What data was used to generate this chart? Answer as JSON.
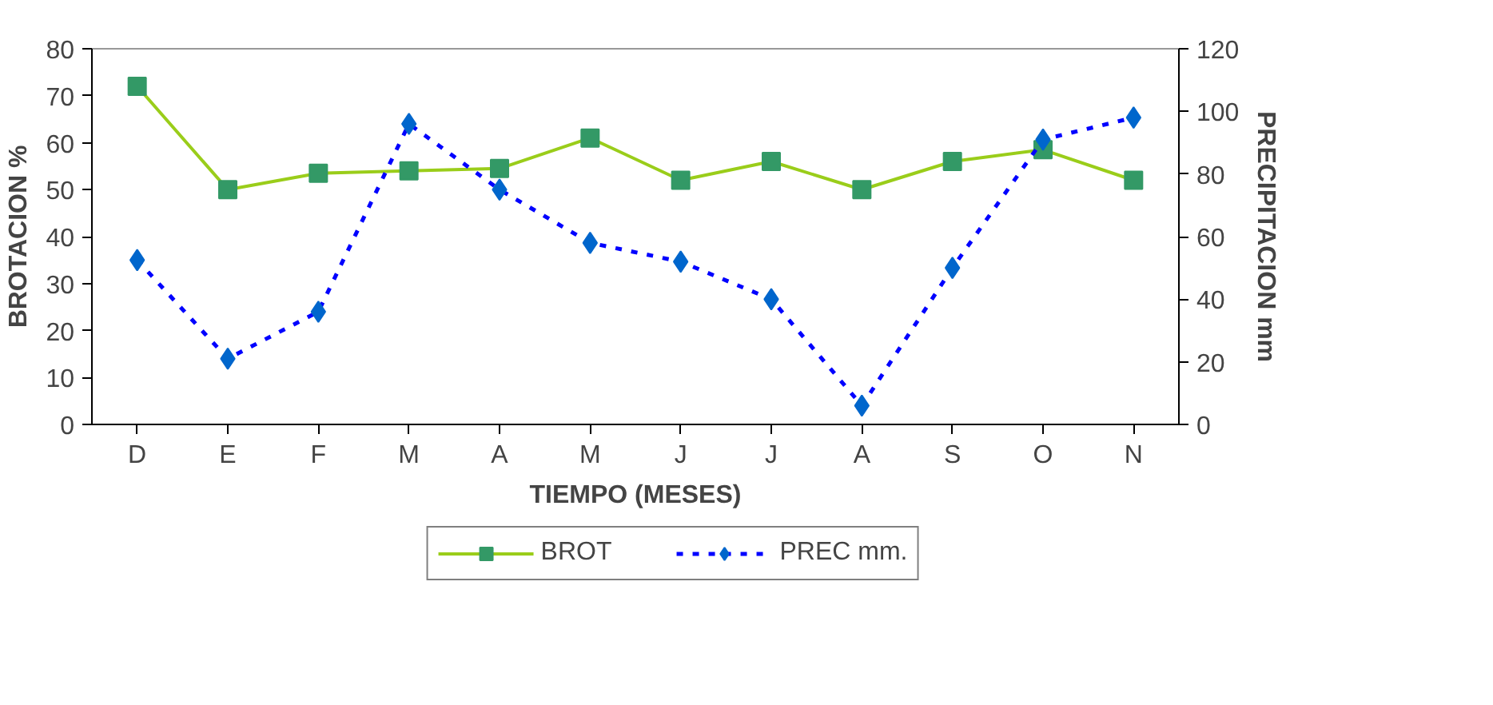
{
  "chart_data": {
    "type": "line",
    "xlabel": "TIEMPO (MESES)",
    "ylabel": "BROTACION %",
    "y2label": "PRECIPITACION mm",
    "categories": [
      "D",
      "E",
      "F",
      "M",
      "A",
      "M",
      "J",
      "J",
      "A",
      "S",
      "O",
      "N"
    ],
    "series": [
      {
        "name": "BROT",
        "color": "#9acd1a",
        "values": [
          72,
          50,
          53.5,
          54,
          54.5,
          61,
          52,
          56,
          50,
          56,
          58.5,
          52
        ],
        "marker": "square",
        "line_style": "solid"
      },
      {
        "name": "PREC mm.",
        "color": "#0000ff",
        "values": [
          52.5,
          21,
          36,
          96,
          75,
          58,
          52,
          40,
          6,
          50,
          91,
          98
        ],
        "axis": "y2",
        "marker": "diamond",
        "line_style": "dashed"
      }
    ],
    "ylim": [
      0,
      80
    ],
    "yticks": [
      0,
      10,
      20,
      30,
      40,
      50,
      60,
      70,
      80
    ],
    "y2lim": [
      0,
      120
    ],
    "y2ticks": [
      0,
      20,
      40,
      60,
      80,
      100,
      120
    ],
    "grid": false,
    "legend": "bottom"
  }
}
